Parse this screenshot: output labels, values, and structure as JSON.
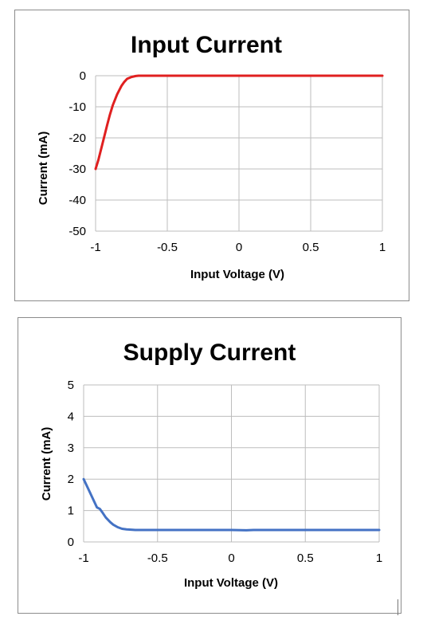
{
  "chart_data": [
    {
      "type": "line",
      "title": "Input Current",
      "xlabel": "Input Voltage (V)",
      "ylabel": "Current (mA)",
      "xlim": [
        -1,
        1
      ],
      "ylim": [
        -50,
        0
      ],
      "xticks": [
        "-1",
        "-0.5",
        "0",
        "0.5",
        "1"
      ],
      "yticks": [
        "0",
        "-10",
        "-20",
        "-30",
        "-40",
        "-50"
      ],
      "xtick_values": [
        -1,
        -0.5,
        0,
        0.5,
        1
      ],
      "ytick_values": [
        0,
        -10,
        -20,
        -30,
        -40,
        -50
      ],
      "grid": true,
      "series": [
        {
          "color": "#e02020",
          "x": [
            -1.0,
            -0.98,
            -0.95,
            -0.92,
            -0.9,
            -0.88,
            -0.85,
            -0.82,
            -0.8,
            -0.78,
            -0.75,
            -0.72,
            -0.7,
            -0.68,
            -0.65,
            -0.6,
            -0.5,
            -0.25,
            0,
            0.25,
            0.5,
            0.75,
            1.0
          ],
          "y": [
            -30,
            -27,
            -21.5,
            -16,
            -12.5,
            -9.5,
            -6,
            -3.3,
            -2,
            -1,
            -0.4,
            -0.1,
            0,
            0,
            0,
            0,
            0,
            0,
            0,
            0,
            0,
            0,
            0
          ]
        }
      ]
    },
    {
      "type": "line",
      "title": "Supply Current",
      "xlabel": "Input Voltage (V)",
      "ylabel": "Current (mA)",
      "xlim": [
        -1,
        1
      ],
      "ylim": [
        0,
        5
      ],
      "xticks": [
        "-1",
        "-0.5",
        "0",
        "0.5",
        "1"
      ],
      "yticks": [
        "5",
        "4",
        "3",
        "2",
        "1",
        "0"
      ],
      "xtick_values": [
        -1,
        -0.5,
        0,
        0.5,
        1
      ],
      "ytick_values": [
        5,
        4,
        3,
        2,
        1,
        0
      ],
      "grid": true,
      "series": [
        {
          "color": "#4472c4",
          "x": [
            -1.0,
            -0.97,
            -0.94,
            -0.91,
            -0.89,
            -0.87,
            -0.85,
            -0.82,
            -0.8,
            -0.77,
            -0.74,
            -0.71,
            -0.68,
            -0.65,
            -0.6,
            -0.5,
            -0.4,
            -0.2,
            0,
            0.1,
            0.15,
            0.2,
            0.4,
            0.6,
            0.8,
            1.0
          ],
          "y": [
            2.0,
            1.7,
            1.4,
            1.1,
            1.05,
            0.92,
            0.78,
            0.63,
            0.55,
            0.47,
            0.42,
            0.4,
            0.39,
            0.38,
            0.38,
            0.38,
            0.38,
            0.38,
            0.38,
            0.37,
            0.38,
            0.38,
            0.38,
            0.38,
            0.38,
            0.38
          ]
        }
      ]
    }
  ]
}
